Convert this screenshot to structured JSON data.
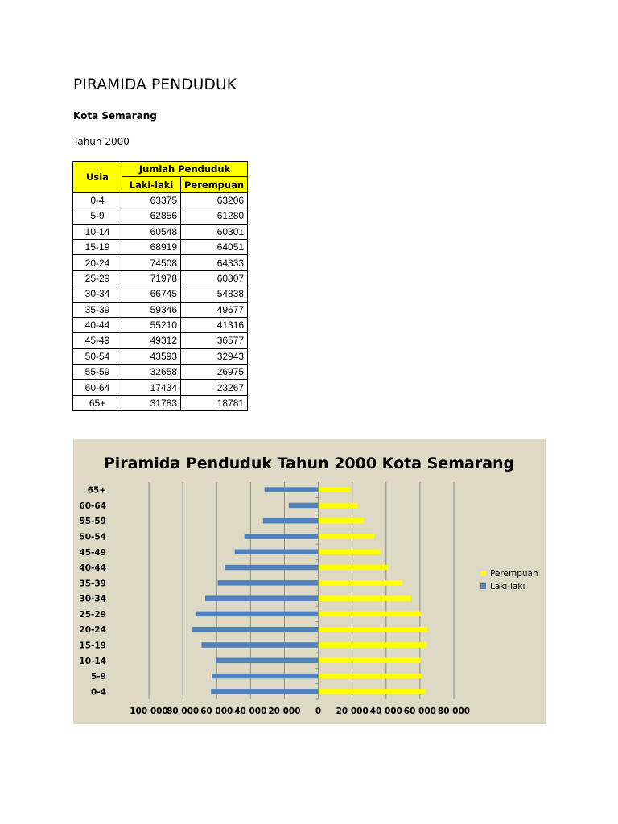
{
  "page": {
    "title": "PIRAMIDA PENDUDUK",
    "city": "Kota Semarang",
    "year": "Tahun 2000"
  },
  "table": {
    "header_age": "Usia",
    "header_group": "Jumlah Penduduk",
    "header_male": "Laki-laki",
    "header_female": "Perempuan",
    "rows": [
      {
        "age": "0-4",
        "male": "63375",
        "female": "63206"
      },
      {
        "age": "5-9",
        "male": "62856",
        "female": "61280"
      },
      {
        "age": "10-14",
        "male": "60548",
        "female": "60301"
      },
      {
        "age": "15-19",
        "male": "68919",
        "female": "64051"
      },
      {
        "age": "20-24",
        "male": "74508",
        "female": "64333"
      },
      {
        "age": "25-29",
        "male": "71978",
        "female": "60807"
      },
      {
        "age": "30-34",
        "male": "66745",
        "female": "54838"
      },
      {
        "age": "35-39",
        "male": "59346",
        "female": "49677"
      },
      {
        "age": "40-44",
        "male": "55210",
        "female": "41316"
      },
      {
        "age": "45-49",
        "male": "49312",
        "female": "36577"
      },
      {
        "age": "50-54",
        "male": "43593",
        "female": "32943"
      },
      {
        "age": "55-59",
        "male": "32658",
        "female": "26975"
      },
      {
        "age": "60-64",
        "male": "17434",
        "female": "23267"
      },
      {
        "age": "65+",
        "male": "31783",
        "female": "18781"
      }
    ]
  },
  "chart_data": {
    "type": "bar",
    "orientation": "horizontal",
    "title": "Piramida Penduduk Tahun 2000 Kota Semarang",
    "categories": [
      "0-4",
      "5-9",
      "10-14",
      "15-19",
      "20-24",
      "25-29",
      "30-34",
      "35-39",
      "40-44",
      "45-49",
      "50-54",
      "55-59",
      "60-64",
      "65+"
    ],
    "series": [
      {
        "name": "Perempuan",
        "color": "#ffff00",
        "values": [
          63206,
          61280,
          60301,
          64051,
          64333,
          60807,
          54838,
          49677,
          41316,
          36577,
          32943,
          26975,
          23267,
          18781
        ]
      },
      {
        "name": "Laki-laki",
        "color": "#4f81bd",
        "values": [
          -63375,
          -62856,
          -60548,
          -68919,
          -74508,
          -71978,
          -66745,
          -59346,
          -55210,
          -49312,
          -43593,
          -32658,
          -17434,
          -31783
        ]
      }
    ],
    "xlim": [
      -100000,
      80000
    ],
    "x_ticks": [
      -100000,
      -80000,
      -60000,
      -40000,
      -20000,
      0,
      20000,
      40000,
      60000,
      80000
    ],
    "x_tick_labels": [
      "100 000",
      "80 000",
      "60 000",
      "40 000",
      "20 000",
      "0",
      "20 000",
      "40 000",
      "60 000",
      "80 000"
    ],
    "legend_position": "right",
    "grid": "vertical",
    "background": "#ddd9c4"
  }
}
